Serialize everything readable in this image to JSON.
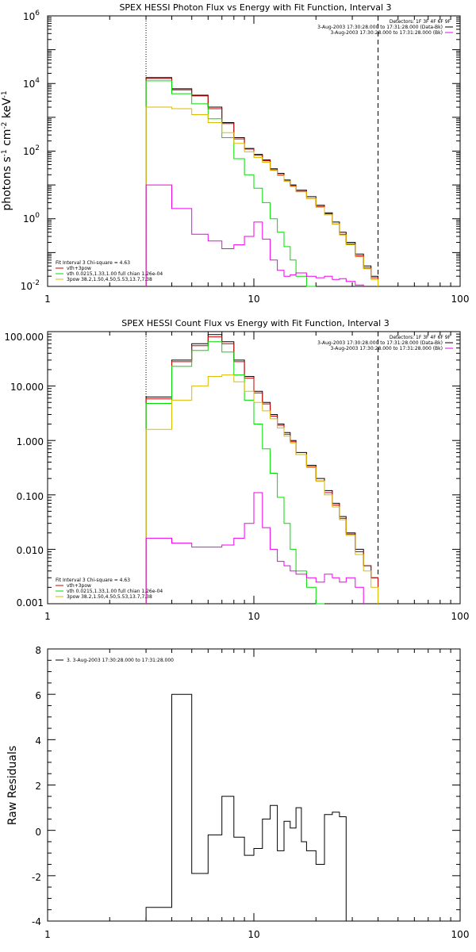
{
  "charts": [
    {
      "title": "SPEX HESSI Photon Flux vs Energy with Fit Function, Interval 3",
      "ylabel_parts": {
        "a": "photons s",
        "b": "-1",
        "c": " cm",
        "d": "-2",
        "e": " keV",
        "f": "-1"
      },
      "x_ticks": [
        "1",
        "10",
        "100"
      ],
      "y_ticks": [
        {
          "base": "10",
          "exp": "6"
        },
        {
          "base": "10",
          "exp": "4"
        },
        {
          "base": "10",
          "exp": "2"
        },
        {
          "base": "10",
          "exp": "0"
        },
        {
          "base": "10",
          "exp": "-2"
        }
      ],
      "legend_right": [
        "Detectors: 1F 3F 4F 6F 9F",
        "3-Aug-2003 17:30:28.000 to 17:31:28.000 (Data-Bk)",
        "3-Aug-2003 17:30:28.000 to 17:31:28.000 (Bk)"
      ],
      "legend_left": [
        "Fit Interval 3   Chi-square = 4.63",
        "vth+3pow",
        "vth 0.0215,1.33,1.00  full chian 1.26e-04",
        "3pow 38.2,1.50,4.50,5.53,13.7,7.38"
      ]
    },
    {
      "title": "SPEX HESSI Count Flux vs Energy with Fit Function, Interval 3",
      "x_ticks": [
        "1",
        "10",
        "100"
      ],
      "y_ticks": [
        "100.000",
        "10.000",
        "1.000",
        "0.100",
        "0.010",
        "0.001"
      ],
      "legend_right": [
        "Detectors: 1F 3F 4F 6F 9F",
        "3-Aug-2003 17:30:28.000 to 17:31:28.000 (Data-Bk)",
        "3-Aug-2003 17:30:28.000 to 17:31:28.000 (Bk)"
      ],
      "legend_left": [
        "Fit Interval 3   Chi-square = 4.63",
        "vth+3pow",
        "vth 0.0215,1.33,1.00  full chian 1.26e-04",
        "3pow 38.2,1.50,4.50,5.53,13.7,7.38"
      ]
    },
    {
      "title": "",
      "ylabel": "Raw Residuals",
      "x_ticks": [
        "1",
        "10",
        "100"
      ],
      "y_ticks": [
        "8",
        "6",
        "4",
        "2",
        "0",
        "-2",
        "-4"
      ],
      "legend": "3.  3-Aug-2003 17:30:28.000 to 17:31:28.000"
    }
  ],
  "colors": {
    "data": "#000000",
    "total_fit": "#cc0000",
    "thermal": "#00dd00",
    "powerlaw": "#ddbb00",
    "background": "#ee00ee"
  },
  "chart_data": [
    {
      "type": "line",
      "title": "SPEX HESSI Photon Flux vs Energy with Fit Function, Interval 3",
      "xscale": "log",
      "yscale": "log",
      "xlim": [
        1,
        100
      ],
      "ylim": [
        0.01,
        1000000
      ],
      "ylabel": "photons s^-1 cm^-2 keV^-1",
      "x_edges": [
        3,
        4,
        5,
        6,
        7,
        8,
        9,
        10,
        11,
        12,
        13,
        14,
        15,
        16,
        18,
        20,
        22,
        24,
        26,
        28,
        31,
        34,
        37,
        40
      ],
      "vlines": {
        "dotted": 3,
        "dashed": 40
      },
      "series": [
        {
          "name": "Data-Bk",
          "color": "#000000",
          "values": [
            15000,
            7000,
            4500,
            2000,
            700,
            250,
            120,
            80,
            55,
            30,
            22,
            14,
            10,
            7,
            4.5,
            2.5,
            1.5,
            0.8,
            0.4,
            0.2,
            0.09,
            0.04,
            0.02
          ]
        },
        {
          "name": "vth+3pow",
          "color": "#cc0000",
          "values": [
            14000,
            6500,
            4300,
            1800,
            650,
            230,
            115,
            75,
            52,
            28,
            20,
            13,
            9.5,
            6.5,
            4,
            2.3,
            1.4,
            0.7,
            0.35,
            0.18,
            0.08,
            0.035,
            0.018
          ]
        },
        {
          "name": "vth",
          "color": "#00dd00",
          "values": [
            12000,
            5000,
            2500,
            900,
            250,
            60,
            20,
            8,
            3,
            1,
            0.4,
            0.15,
            0.06,
            0.02,
            0.01
          ]
        },
        {
          "name": "3pow",
          "color": "#ddbb00",
          "values": [
            2000,
            1800,
            1200,
            700,
            350,
            170,
            95,
            65,
            47,
            27,
            19,
            13,
            9,
            6.3,
            4,
            2.2,
            1.3,
            0.7,
            0.33,
            0.17,
            0.075,
            0.033,
            0.016
          ]
        },
        {
          "name": "Bk",
          "color": "#ee00ee",
          "values": [
            10,
            2,
            0.35,
            0.22,
            0.13,
            0.17,
            0.3,
            0.8,
            0.25,
            0.06,
            0.03,
            0.02,
            0.022,
            0.025,
            0.02,
            0.018,
            0.02,
            0.016,
            0.017,
            0.014,
            0.011
          ]
        }
      ]
    },
    {
      "type": "line",
      "title": "SPEX HESSI Count Flux vs Energy with Fit Function, Interval 3",
      "xscale": "log",
      "yscale": "log",
      "xlim": [
        1,
        100
      ],
      "ylim": [
        0.001,
        100
      ],
      "x_edges": [
        3,
        4,
        5,
        6,
        7,
        8,
        9,
        10,
        11,
        12,
        13,
        14,
        15,
        16,
        18,
        20,
        22,
        24,
        26,
        28,
        31,
        34,
        37,
        40
      ],
      "vlines": {
        "dotted": 3,
        "dashed": 40
      },
      "series": [
        {
          "name": "Data-Bk",
          "color": "#000000",
          "values": [
            6.3,
            30,
            60,
            88,
            65,
            30,
            15,
            8,
            5,
            3,
            2,
            1.4,
            1,
            0.6,
            0.35,
            0.2,
            0.12,
            0.07,
            0.04,
            0.02,
            0.01,
            0.005,
            0.003
          ]
        },
        {
          "name": "vth+3pow",
          "color": "#cc0000",
          "values": [
            5.8,
            28,
            55,
            80,
            60,
            28,
            14,
            7.5,
            4.7,
            2.8,
            1.9,
            1.3,
            0.95,
            0.55,
            0.33,
            0.18,
            0.11,
            0.065,
            0.037,
            0.019,
            0.009,
            0.005,
            0.003
          ]
        },
        {
          "name": "vth",
          "color": "#00dd00",
          "values": [
            4.8,
            23,
            45,
            65,
            42,
            16,
            5.5,
            2,
            0.7,
            0.25,
            0.09,
            0.03,
            0.01,
            0.004,
            0.002,
            0.001
          ]
        },
        {
          "name": "3pow",
          "color": "#ddbb00",
          "values": [
            1.6,
            5.5,
            10,
            15,
            16,
            12,
            8,
            5,
            3.5,
            2.5,
            1.7,
            1.2,
            0.9,
            0.55,
            0.32,
            0.18,
            0.1,
            0.06,
            0.035,
            0.018,
            0.008,
            0.004,
            0.002
          ]
        },
        {
          "name": "Bk",
          "color": "#ee00ee",
          "values": [
            0.016,
            0.013,
            0.011,
            0.011,
            0.012,
            0.016,
            0.03,
            0.11,
            0.025,
            0.01,
            0.006,
            0.005,
            0.004,
            0.0035,
            0.003,
            0.0025,
            0.0035,
            0.003,
            0.0025,
            0.003,
            0.002
          ]
        }
      ]
    },
    {
      "type": "line",
      "ylabel": "Raw Residuals",
      "xscale": "log",
      "xlim": [
        1,
        100
      ],
      "ylim": [
        -4,
        8
      ],
      "x_edges": [
        3,
        4,
        5,
        6,
        7,
        8,
        9,
        10,
        11,
        12,
        13,
        14,
        15,
        16,
        17,
        18,
        20,
        22,
        24,
        26,
        28,
        31,
        34,
        37,
        40
      ],
      "series": [
        {
          "name": "3.  3-Aug-2003 17:30:28.000 to 17:31:28.000",
          "color": "#000000",
          "values": [
            -3.4,
            6.0,
            -1.9,
            -0.2,
            1.5,
            -0.3,
            -1.1,
            -0.8,
            0.5,
            1.1,
            -0.9,
            0.4,
            0.1,
            1.0,
            -0.5,
            -0.9,
            -1.5,
            0.7,
            0.8,
            0.6,
            -4.0,
            -4.0,
            -4.0,
            -4.0
          ]
        }
      ]
    }
  ]
}
